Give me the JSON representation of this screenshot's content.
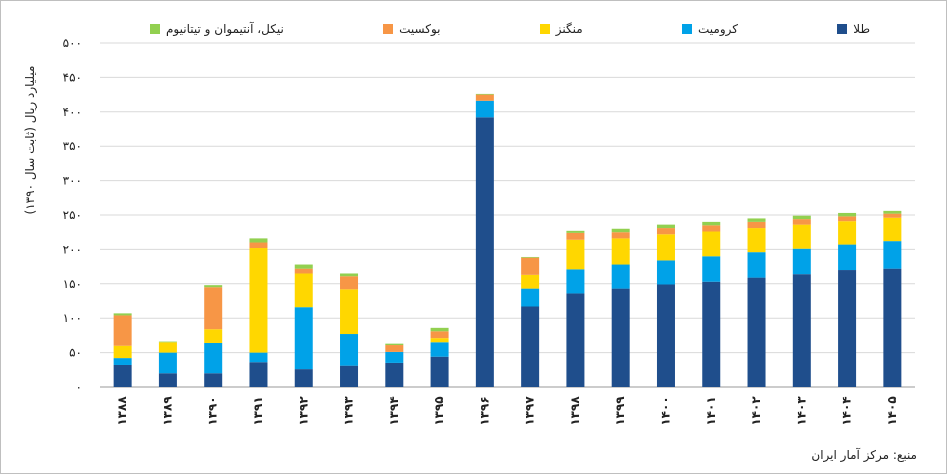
{
  "chart_data": {
    "type": "bar",
    "stacked": true,
    "ylabel": "میلیارد ریال (ثابت سال ۱۳۹۰)",
    "source": "منبع: مرکز آمار ایران",
    "ylim": [
      0,
      500
    ],
    "yticks": [
      0,
      50,
      100,
      150,
      200,
      250,
      300,
      350,
      400,
      450,
      500
    ],
    "ytick_labels": [
      "۰",
      "۵۰",
      "۱۰۰",
      "۱۵۰",
      "۲۰۰",
      "۲۵۰",
      "۳۰۰",
      "۳۵۰",
      "۴۰۰",
      "۴۵۰",
      "۵۰۰"
    ],
    "categories": [
      "۱۳۸۸",
      "۱۳۸۹",
      "۱۳۹۰",
      "۱۳۹۱",
      "۱۳۹۲",
      "۱۳۹۳",
      "۱۳۹۴",
      "۱۳۹۵",
      "۱۳۹۶",
      "۱۳۹۷",
      "۱۳۹۸",
      "۱۳۹۹",
      "۱۴۰۰",
      "۱۴۰۱",
      "۱۴۰۲",
      "۱۴۰۳",
      "۱۴۰۴",
      "۱۴۰۵"
    ],
    "grid": true,
    "legend_position": "top",
    "series": [
      {
        "name": "طلا",
        "color": "#1f4e8c",
        "values": [
          32,
          20,
          20,
          36,
          26,
          31,
          35,
          44,
          392,
          117,
          136,
          143,
          149,
          153,
          159,
          164,
          170,
          172
        ]
      },
      {
        "name": "کرومیت",
        "color": "#00a2e8",
        "values": [
          10,
          30,
          44,
          14,
          90,
          46,
          16,
          21,
          24,
          26,
          35,
          35,
          35,
          37,
          37,
          37,
          37,
          40
        ]
      },
      {
        "name": "منگنز",
        "color": "#ffd700",
        "values": [
          18,
          15,
          20,
          152,
          49,
          65,
          0,
          6,
          0,
          20,
          43,
          38,
          38,
          36,
          35,
          35,
          34,
          34
        ]
      },
      {
        "name": "بوکسیت",
        "color": "#f79646",
        "values": [
          44,
          0,
          61,
          8,
          7,
          19,
          10,
          10,
          9,
          25,
          10,
          9,
          9,
          9,
          9,
          8,
          7,
          6
        ]
      },
      {
        "name": "نیکل، آنتیموان و تیتانیوم",
        "color": "#92d050",
        "values": [
          3,
          1,
          3,
          6,
          6,
          4,
          2,
          5,
          1,
          1,
          3,
          5,
          5,
          5,
          5,
          5,
          5,
          4
        ]
      }
    ]
  }
}
